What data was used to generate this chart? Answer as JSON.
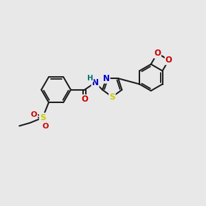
{
  "background_color": "#e8e8e8",
  "bond_color": "#1a1a1a",
  "atom_colors": {
    "N": "#0000cc",
    "O": "#cc0000",
    "S_thiazole": "#cccc00",
    "S_sulfonyl": "#cccc00",
    "H": "#007070",
    "C": "#1a1a1a"
  },
  "figsize": [
    3.0,
    3.0
  ],
  "dpi": 100,
  "xlim": [
    0,
    10
  ],
  "ylim": [
    0,
    10
  ]
}
